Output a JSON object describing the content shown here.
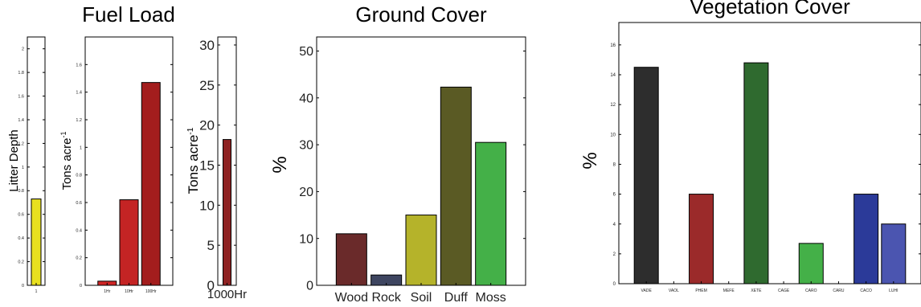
{
  "chart_data": [
    {
      "type": "bar",
      "title": "Fuel Load",
      "ylabel": "Litter Depth",
      "categories": [
        "1"
      ],
      "values": [
        0.73
      ],
      "ylim": [
        0,
        2.1
      ],
      "yticks": [
        "0",
        "0.2",
        "0.4",
        "0.6",
        "0.8",
        "1",
        "1.2",
        "1.4",
        "1.6",
        "1.8",
        "2"
      ],
      "colors": [
        "#e8e020"
      ]
    },
    {
      "type": "bar",
      "ylabel": "Tons acre",
      "ylabel_sup": "-1",
      "categories": [
        "1Hr",
        "10Hr",
        "100Hr"
      ],
      "values": [
        0.03,
        0.62,
        1.47
      ],
      "ylim": [
        0,
        1.8
      ],
      "yticks": [
        "0",
        "0.2",
        "0.4",
        "0.6",
        "0.8",
        "1",
        "1.2",
        "1.4",
        "1.6"
      ],
      "colors": [
        "#d02525",
        "#c42424",
        "#a31d1d"
      ]
    },
    {
      "type": "bar",
      "ylabel": "Tons acre",
      "ylabel_sup": "-1",
      "categories": [
        "1000Hr"
      ],
      "values": [
        18.2
      ],
      "ylim": [
        0,
        31
      ],
      "yticks": [
        "0",
        "5",
        "10",
        "15",
        "20",
        "25",
        "30"
      ],
      "colors": [
        "#8e2222"
      ]
    },
    {
      "type": "bar",
      "title": "Ground Cover",
      "ylabel": "%",
      "categories": [
        "Wood",
        "Rock",
        "Soil",
        "Duff",
        "Moss"
      ],
      "values": [
        11,
        2.2,
        15,
        42.3,
        30.5
      ],
      "ylim": [
        0,
        53
      ],
      "yticks": [
        "0",
        "10",
        "20",
        "30",
        "40",
        "50"
      ],
      "colors": [
        "#6a2a2a",
        "#3e4560",
        "#b5b32a",
        "#5a5a24",
        "#44b048"
      ]
    },
    {
      "type": "bar",
      "title": "Vegetation Cover",
      "ylabel": "%",
      "categories": [
        "VADE",
        "VAOL",
        "PHEM",
        "MEFE",
        "XETE",
        "CAGE",
        "CARO",
        "CARU",
        "CACO",
        "LUHI"
      ],
      "values": [
        14.5,
        0,
        6,
        0,
        14.8,
        0,
        2.7,
        0,
        6,
        4
      ],
      "ylim": [
        0,
        17.5
      ],
      "yticks": [
        "0",
        "2",
        "4",
        "6",
        "8",
        "10",
        "12",
        "14",
        "16"
      ],
      "colors": [
        "#2d2d2d",
        "#2d2d2d",
        "#9b2a2a",
        "#9b2a2a",
        "#2f6a2f",
        "#2f6a2f",
        "#44b048",
        "#44b048",
        "#2b3a99",
        "#4b55b0"
      ]
    }
  ]
}
